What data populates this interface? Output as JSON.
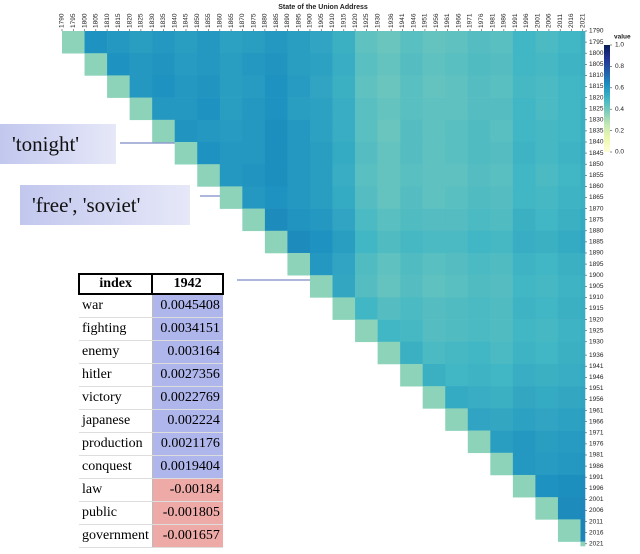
{
  "chart_data": {
    "type": "heatmap",
    "title": "State of the Union Address",
    "bins": [
      1790,
      1800,
      1810,
      1820,
      1830,
      1840,
      1850,
      1860,
      1870,
      1880,
      1890,
      1900,
      1910,
      1920,
      1930,
      1940,
      1950,
      1960,
      1970,
      1980,
      1990,
      2000,
      2010,
      2020,
      2022
    ],
    "xlim": [
      1790,
      2022
    ],
    "ylim": [
      1790,
      2022
    ],
    "xticks": [
      1790,
      1795,
      1800,
      1805,
      1810,
      1815,
      1820,
      1825,
      1830,
      1835,
      1840,
      1845,
      1850,
      1855,
      1860,
      1865,
      1870,
      1875,
      1880,
      1885,
      1890,
      1895,
      1900,
      1905,
      1910,
      1915,
      1920,
      1925,
      1930,
      1936,
      1941,
      1946,
      1951,
      1956,
      1961,
      1966,
      1971,
      1976,
      1981,
      1986,
      1991,
      1996,
      2001,
      2006,
      2011,
      2016,
      2021
    ],
    "yticks": [
      1790,
      1795,
      1800,
      1805,
      1810,
      1815,
      1820,
      1825,
      1830,
      1835,
      1840,
      1845,
      1850,
      1855,
      1860,
      1865,
      1870,
      1875,
      1880,
      1885,
      1890,
      1895,
      1900,
      1905,
      1910,
      1915,
      1920,
      1925,
      1930,
      1936,
      1941,
      1946,
      1951,
      1956,
      1961,
      1966,
      1971,
      1976,
      1981,
      1986,
      1991,
      1996,
      2001,
      2006,
      2011,
      2016,
      2021
    ],
    "colorscale": [
      "#ffffd9",
      "#edf8b1",
      "#c7e9b4",
      "#7fcdbb",
      "#41b6c4",
      "#1d91c0",
      "#225ea8",
      "#253494",
      "#081d58"
    ],
    "colorbar": {
      "label": "value",
      "lim": [
        0,
        1
      ],
      "ticks": [
        {
          "value": 1,
          "label": "1.0"
        },
        0.8,
        0.6,
        0.4,
        0.2,
        {
          "value": 0,
          "label": "0.0"
        }
      ]
    },
    "values": [
      [
        0.35,
        0.62,
        0.6,
        0.58,
        0.6,
        0.58,
        0.6,
        0.57,
        0.58,
        0.6,
        0.58,
        0.56,
        0.52,
        0.44,
        0.42,
        0.45,
        0.43,
        0.44,
        0.46,
        0.45,
        0.5,
        0.48,
        0.5,
        0.52
      ],
      [
        null,
        0.35,
        0.62,
        0.6,
        0.61,
        0.59,
        0.6,
        0.58,
        0.6,
        0.61,
        0.58,
        0.57,
        0.53,
        0.45,
        0.43,
        0.46,
        0.44,
        0.45,
        0.47,
        0.46,
        0.5,
        0.49,
        0.51,
        0.52
      ],
      [
        null,
        null,
        0.35,
        0.6,
        0.62,
        0.6,
        0.61,
        0.58,
        0.59,
        0.62,
        0.59,
        0.56,
        0.52,
        0.44,
        0.42,
        0.45,
        0.43,
        0.44,
        0.46,
        0.45,
        0.49,
        0.48,
        0.5,
        0.51
      ],
      [
        null,
        null,
        null,
        0.35,
        0.6,
        0.6,
        0.62,
        0.58,
        0.6,
        0.62,
        0.58,
        0.57,
        0.53,
        0.45,
        0.43,
        0.45,
        0.44,
        0.44,
        0.46,
        0.46,
        0.5,
        0.48,
        0.5,
        0.52
      ],
      [
        null,
        null,
        null,
        null,
        0.35,
        0.61,
        0.6,
        0.59,
        0.6,
        0.63,
        0.6,
        0.57,
        0.53,
        0.45,
        0.42,
        0.46,
        0.44,
        0.45,
        0.47,
        0.45,
        0.5,
        0.49,
        0.5,
        0.52
      ],
      [
        null,
        null,
        null,
        null,
        null,
        0.35,
        0.62,
        0.6,
        0.6,
        0.63,
        0.6,
        0.58,
        0.54,
        0.46,
        0.43,
        0.46,
        0.44,
        0.45,
        0.47,
        0.46,
        0.51,
        0.49,
        0.51,
        0.53
      ],
      [
        null,
        null,
        null,
        null,
        null,
        null,
        0.35,
        0.6,
        0.61,
        0.63,
        0.6,
        0.58,
        0.53,
        0.45,
        0.43,
        0.45,
        0.44,
        0.44,
        0.46,
        0.45,
        0.5,
        0.48,
        0.5,
        0.52
      ],
      [
        null,
        null,
        null,
        null,
        null,
        null,
        null,
        0.35,
        0.6,
        0.62,
        0.6,
        0.58,
        0.54,
        0.46,
        0.43,
        0.46,
        0.44,
        0.45,
        0.47,
        0.46,
        0.5,
        0.49,
        0.51,
        0.52
      ],
      [
        null,
        null,
        null,
        null,
        null,
        null,
        null,
        null,
        0.35,
        0.64,
        0.61,
        0.6,
        0.56,
        0.48,
        0.45,
        0.47,
        0.46,
        0.46,
        0.48,
        0.47,
        0.52,
        0.5,
        0.52,
        0.54
      ],
      [
        null,
        null,
        null,
        null,
        null,
        null,
        null,
        null,
        null,
        0.35,
        0.64,
        0.62,
        0.58,
        0.5,
        0.47,
        0.49,
        0.48,
        0.48,
        0.5,
        0.49,
        0.53,
        0.52,
        0.54,
        0.56
      ],
      [
        null,
        null,
        null,
        null,
        null,
        null,
        null,
        null,
        null,
        null,
        0.35,
        0.6,
        0.56,
        0.47,
        0.44,
        0.47,
        0.45,
        0.46,
        0.48,
        0.47,
        0.51,
        0.5,
        0.52,
        0.53
      ],
      [
        null,
        null,
        null,
        null,
        null,
        null,
        null,
        null,
        null,
        null,
        null,
        0.35,
        0.55,
        0.46,
        0.43,
        0.46,
        0.44,
        0.45,
        0.47,
        0.46,
        0.5,
        0.49,
        0.51,
        0.52
      ],
      [
        null,
        null,
        null,
        null,
        null,
        null,
        null,
        null,
        null,
        null,
        null,
        null,
        0.35,
        0.5,
        0.46,
        0.48,
        0.46,
        0.47,
        0.48,
        0.47,
        0.51,
        0.5,
        0.52,
        0.53
      ],
      [
        null,
        null,
        null,
        null,
        null,
        null,
        null,
        null,
        null,
        null,
        null,
        null,
        null,
        0.35,
        0.5,
        0.49,
        0.46,
        0.47,
        0.48,
        0.47,
        0.5,
        0.49,
        0.51,
        0.52
      ],
      [
        null,
        null,
        null,
        null,
        null,
        null,
        null,
        null,
        null,
        null,
        null,
        null,
        null,
        null,
        0.35,
        0.52,
        0.48,
        0.49,
        0.5,
        0.48,
        0.51,
        0.5,
        0.52,
        0.53
      ],
      [
        null,
        null,
        null,
        null,
        null,
        null,
        null,
        null,
        null,
        null,
        null,
        null,
        null,
        null,
        null,
        0.35,
        0.52,
        0.5,
        0.51,
        0.5,
        0.53,
        0.52,
        0.53,
        0.54
      ],
      [
        null,
        null,
        null,
        null,
        null,
        null,
        null,
        null,
        null,
        null,
        null,
        null,
        null,
        null,
        null,
        null,
        0.35,
        0.54,
        0.53,
        0.52,
        0.55,
        0.54,
        0.55,
        0.56
      ],
      [
        null,
        null,
        null,
        null,
        null,
        null,
        null,
        null,
        null,
        null,
        null,
        null,
        null,
        null,
        null,
        null,
        null,
        0.35,
        0.56,
        0.55,
        0.57,
        0.56,
        0.57,
        0.58
      ],
      [
        null,
        null,
        null,
        null,
        null,
        null,
        null,
        null,
        null,
        null,
        null,
        null,
        null,
        null,
        null,
        null,
        null,
        null,
        0.35,
        0.58,
        0.6,
        0.58,
        0.59,
        0.6
      ],
      [
        null,
        null,
        null,
        null,
        null,
        null,
        null,
        null,
        null,
        null,
        null,
        null,
        null,
        null,
        null,
        null,
        null,
        null,
        null,
        0.35,
        0.6,
        0.59,
        0.6,
        0.61
      ],
      [
        null,
        null,
        null,
        null,
        null,
        null,
        null,
        null,
        null,
        null,
        null,
        null,
        null,
        null,
        null,
        null,
        null,
        null,
        null,
        null,
        0.35,
        0.62,
        0.63,
        0.64
      ],
      [
        null,
        null,
        null,
        null,
        null,
        null,
        null,
        null,
        null,
        null,
        null,
        null,
        null,
        null,
        null,
        null,
        null,
        null,
        null,
        null,
        null,
        0.35,
        0.64,
        0.65
      ],
      [
        null,
        null,
        null,
        null,
        null,
        null,
        null,
        null,
        null,
        null,
        null,
        null,
        null,
        null,
        null,
        null,
        null,
        null,
        null,
        null,
        null,
        null,
        0.35,
        0.66
      ],
      [
        null,
        null,
        null,
        null,
        null,
        null,
        null,
        null,
        null,
        null,
        null,
        null,
        null,
        null,
        null,
        null,
        null,
        null,
        null,
        null,
        null,
        null,
        null,
        0.35
      ]
    ]
  },
  "annotations": [
    "'tonight'",
    "'free', 'soviet'"
  ],
  "table": {
    "header": [
      "index",
      "1942"
    ],
    "rows": [
      [
        "war",
        0.0045408
      ],
      [
        "fighting",
        0.0034151
      ],
      [
        "enemy",
        0.003164
      ],
      [
        "hitler",
        0.0027356
      ],
      [
        "victory",
        0.0022769
      ],
      [
        "japanese",
        0.002224
      ],
      [
        "production",
        0.0021176
      ],
      [
        "conquest",
        0.0019404
      ],
      [
        "law",
        -0.00184
      ],
      [
        "public",
        -0.001805
      ],
      [
        "government",
        -0.001657
      ]
    ]
  }
}
